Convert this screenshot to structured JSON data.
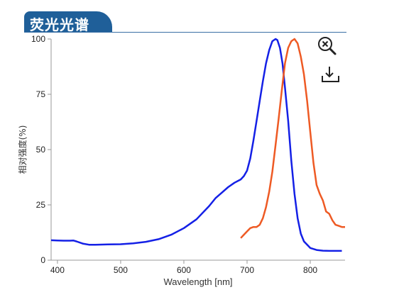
{
  "header": {
    "title": "荧光光谱"
  },
  "toolbar": {
    "zoom_reset": "zoom-reset",
    "download": "download"
  },
  "colors": {
    "header": "#1f5f99",
    "excitation": "#1420e6",
    "emission": "#ee5a24"
  },
  "chart_data": {
    "type": "line",
    "xlabel": "Wavelength [nm]",
    "ylabel": "相对强度(%)",
    "xlim": [
      390,
      855
    ],
    "ylim": [
      0,
      100
    ],
    "xticks": [
      "400",
      "500",
      "600",
      "700",
      "800"
    ],
    "yticks": [
      "0",
      "25",
      "50",
      "75",
      "100"
    ],
    "grid": false,
    "series": [
      {
        "color": "#1420e6",
        "x": [
          390,
          400,
          410,
          420,
          425,
          430,
          440,
          450,
          460,
          480,
          500,
          520,
          540,
          560,
          580,
          600,
          620,
          640,
          650,
          660,
          670,
          680,
          690,
          695,
          700,
          705,
          710,
          715,
          720,
          725,
          730,
          735,
          740,
          745,
          748,
          752,
          756,
          760,
          765,
          770,
          775,
          780,
          785,
          790,
          800,
          810,
          820,
          830,
          840,
          850
        ],
        "y": [
          9,
          8.9,
          8.8,
          8.8,
          8.9,
          8.5,
          7.5,
          7,
          7,
          7.1,
          7.2,
          7.6,
          8.3,
          9.5,
          11.5,
          14.5,
          18.5,
          24.5,
          28,
          30.5,
          33,
          35,
          36.5,
          38,
          40.5,
          46,
          54,
          63,
          72,
          81,
          89,
          95,
          99,
          100,
          99.5,
          96,
          89,
          78,
          63,
          45,
          30,
          19,
          12,
          8.5,
          5.5,
          4.6,
          4.3,
          4.2,
          4.2,
          4.2
        ]
      },
      {
        "color": "#ee5a24",
        "x": [
          690,
          695,
          700,
          705,
          710,
          715,
          720,
          725,
          730,
          735,
          740,
          745,
          750,
          755,
          760,
          765,
          770,
          775,
          780,
          785,
          790,
          795,
          800,
          805,
          810,
          815,
          820,
          825,
          830,
          835,
          840,
          845,
          850,
          855
        ],
        "y": [
          10,
          11.5,
          13,
          14.5,
          15,
          15,
          16,
          19,
          24,
          31,
          40,
          52,
          64,
          77,
          89,
          96,
          99,
          100,
          98,
          92,
          84,
          72,
          58,
          44,
          34,
          30,
          27,
          22,
          21,
          18,
          16,
          15.5,
          15,
          15
        ]
      }
    ]
  }
}
